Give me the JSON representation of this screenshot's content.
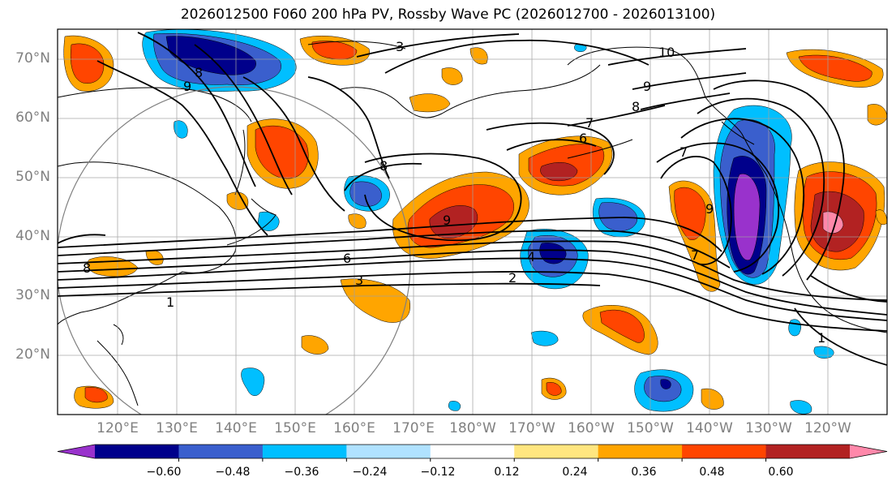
{
  "title": "2026012500 F060 200 hPa PV, Rossby Wave PC (2026012700 - 2026013100)",
  "map": {
    "lon_range": [
      110,
      250
    ],
    "lat_range": [
      10,
      75
    ],
    "lat_labels": [
      "20°N",
      "30°N",
      "40°N",
      "50°N",
      "60°N",
      "70°N"
    ],
    "lon_labels": [
      "120°E",
      "130°E",
      "140°E",
      "150°E",
      "160°E",
      "170°E",
      "180°W",
      "170°W",
      "160°W",
      "150°W",
      "140°W",
      "130°W",
      "120°W"
    ],
    "grid": true,
    "contour_labels": [
      "3",
      "10",
      "9",
      "8",
      "9",
      "9",
      "7",
      "6",
      "7",
      "8",
      "9",
      "8",
      "6",
      "4",
      "2",
      "3",
      "1",
      "8",
      "7",
      "1"
    ]
  },
  "colorbar": {
    "ticks": [
      "−0.60",
      "−0.48",
      "−0.36",
      "−0.24",
      "−0.12",
      "0.12",
      "0.24",
      "0.36",
      "0.48",
      "0.60"
    ],
    "colors": [
      "#9932cc",
      "#00008b",
      "#3a5fcd",
      "#00bfff",
      "#b0e2ff",
      "#ffffff",
      "#ffe680",
      "#ffa500",
      "#ff4500",
      "#b22222",
      "#ff88aa"
    ],
    "extend": "both"
  }
}
